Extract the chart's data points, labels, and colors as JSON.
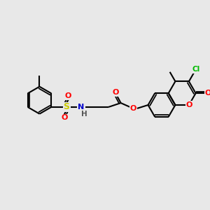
{
  "background_color": "#e8e8e8",
  "atom_colors": {
    "C": "#000000",
    "O": "#ff0000",
    "N": "#0000cc",
    "S": "#cccc00",
    "Cl": "#00bb00",
    "H": "#555555"
  },
  "bond_lw": 1.5,
  "font_size": 8.0,
  "ring_r": 0.58,
  "scale": 28
}
